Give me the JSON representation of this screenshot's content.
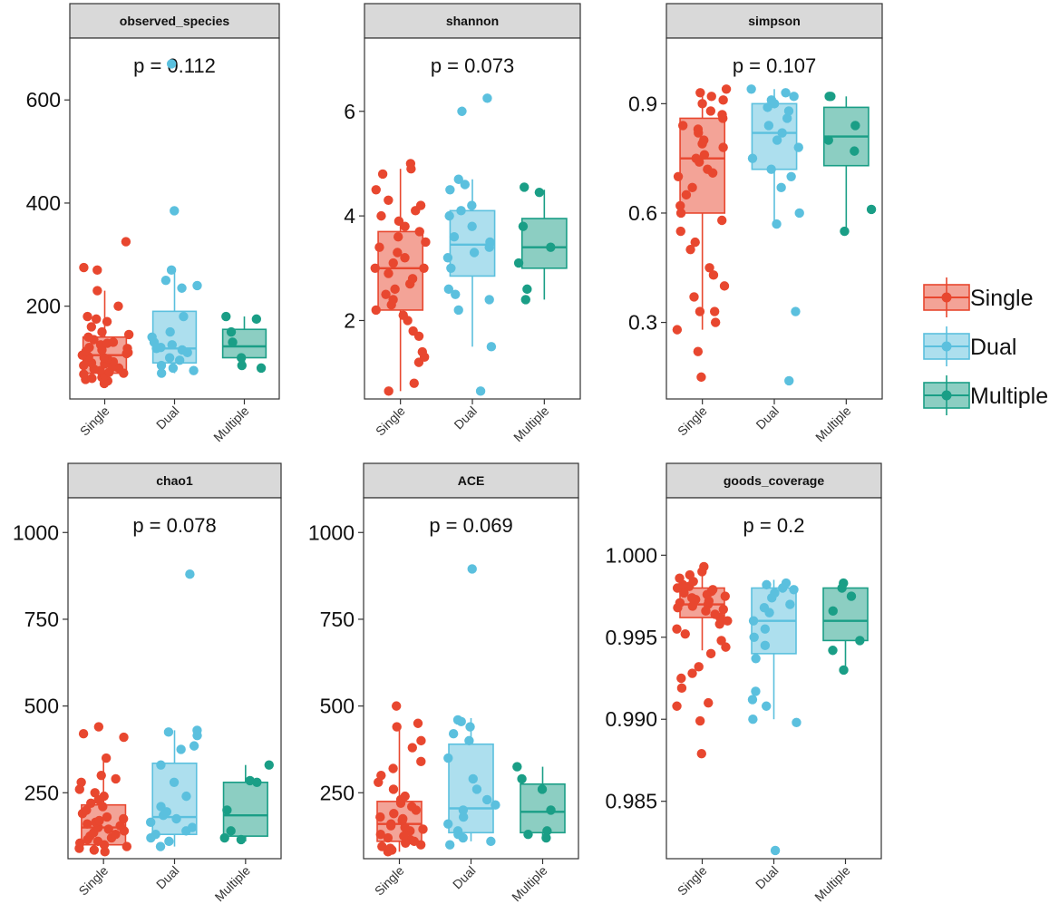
{
  "colors": {
    "single": "#E8472F",
    "dual": "#5BC0DE",
    "multiple": "#1A9E86",
    "strip_fill": "#D9D9D9",
    "panel_border": "#333333",
    "axis_text": "#111111",
    "tick_label_x": "#333333"
  },
  "legend": {
    "entries": [
      {
        "key": "single",
        "label": "Single"
      },
      {
        "key": "dual",
        "label": "Dual"
      },
      {
        "key": "multiple",
        "label": "Multiple"
      }
    ]
  },
  "chart_data": [
    {
      "type": "box",
      "title": "observed_species",
      "annotation": "p = 0.112",
      "categories": [
        "Single",
        "Dual",
        "Multiple"
      ],
      "ylim": [
        20,
        720
      ],
      "yticks": [
        200,
        400,
        600
      ],
      "ytick_labels": [
        "200",
        "400",
        "600"
      ],
      "boxes": [
        {
          "min": 50,
          "q1": 70,
          "median": 105,
          "q3": 140,
          "max": 230
        },
        {
          "min": 70,
          "q1": 90,
          "median": 118,
          "q3": 190,
          "max": 275
        },
        {
          "min": 80,
          "q1": 100,
          "median": 122,
          "q3": 155,
          "max": 180
        }
      ],
      "points": [
        [
          50,
          55,
          58,
          60,
          62,
          65,
          68,
          70,
          72,
          75,
          78,
          80,
          82,
          85,
          88,
          90,
          92,
          95,
          98,
          100,
          102,
          105,
          108,
          110,
          112,
          115,
          118,
          120,
          125,
          128,
          130,
          135,
          140,
          145,
          150,
          160,
          170,
          175,
          180,
          200,
          230,
          270,
          275,
          325
        ],
        [
          70,
          75,
          80,
          85,
          95,
          100,
          110,
          115,
          118,
          120,
          125,
          130,
          140,
          150,
          180,
          235,
          240,
          250,
          270,
          385,
          670
        ],
        [
          80,
          85,
          100,
          130,
          150,
          175,
          180
        ]
      ]
    },
    {
      "type": "box",
      "title": "shannon",
      "annotation": "p = 0.073",
      "categories": [
        "Single",
        "Dual",
        "Multiple"
      ],
      "ylim": [
        0.5,
        7.4
      ],
      "yticks": [
        2,
        4,
        6
      ],
      "ytick_labels": [
        "2",
        "4",
        "6"
      ],
      "boxes": [
        {
          "min": 0.65,
          "q1": 2.2,
          "median": 3.0,
          "q3": 3.7,
          "max": 4.9
        },
        {
          "min": 1.5,
          "q1": 2.85,
          "median": 3.45,
          "q3": 4.1,
          "max": 4.7
        },
        {
          "min": 2.4,
          "q1": 3.0,
          "median": 3.4,
          "q3": 3.95,
          "max": 4.5
        }
      ],
      "points": [
        [
          0.65,
          0.8,
          1.2,
          1.3,
          1.4,
          1.7,
          1.8,
          2.0,
          2.1,
          2.2,
          2.3,
          2.4,
          2.5,
          2.6,
          2.7,
          2.8,
          2.9,
          3.0,
          3.0,
          3.1,
          3.2,
          3.3,
          3.4,
          3.5,
          3.6,
          3.7,
          3.8,
          3.9,
          4.0,
          4.1,
          4.2,
          4.3,
          4.5,
          4.8,
          4.9,
          5.0
        ],
        [
          0.65,
          1.5,
          2.2,
          2.4,
          2.5,
          2.6,
          3.0,
          3.2,
          3.3,
          3.4,
          3.5,
          3.6,
          3.8,
          4.0,
          4.1,
          4.2,
          4.5,
          4.6,
          4.7,
          6.0,
          6.25
        ],
        [
          2.4,
          2.6,
          3.1,
          3.4,
          3.8,
          4.45,
          4.55
        ]
      ]
    },
    {
      "type": "box",
      "title": "simpson",
      "annotation": "p = 0.107",
      "categories": [
        "Single",
        "Dual",
        "Multiple"
      ],
      "ylim": [
        0.09,
        1.08
      ],
      "yticks": [
        0.3,
        0.6,
        0.9
      ],
      "ytick_labels": [
        "0.3",
        "0.6",
        "0.9"
      ],
      "boxes": [
        {
          "min": 0.28,
          "q1": 0.6,
          "median": 0.75,
          "q3": 0.86,
          "max": 0.94
        },
        {
          "min": 0.57,
          "q1": 0.72,
          "median": 0.82,
          "q3": 0.9,
          "max": 0.94
        },
        {
          "min": 0.55,
          "q1": 0.73,
          "median": 0.81,
          "q3": 0.89,
          "max": 0.92
        }
      ],
      "points": [
        [
          0.15,
          0.22,
          0.28,
          0.3,
          0.33,
          0.33,
          0.37,
          0.4,
          0.43,
          0.45,
          0.5,
          0.52,
          0.55,
          0.58,
          0.6,
          0.62,
          0.65,
          0.67,
          0.7,
          0.72,
          0.74,
          0.75,
          0.76,
          0.78,
          0.8,
          0.82,
          0.84,
          0.86,
          0.88,
          0.9,
          0.91,
          0.92,
          0.93,
          0.94,
          0.87,
          0.83,
          0.79,
          0.71
        ],
        [
          0.14,
          0.33,
          0.57,
          0.6,
          0.67,
          0.7,
          0.72,
          0.75,
          0.78,
          0.8,
          0.82,
          0.84,
          0.86,
          0.88,
          0.9,
          0.91,
          0.92,
          0.93,
          0.94,
          0.89
        ],
        [
          0.55,
          0.61,
          0.77,
          0.8,
          0.84,
          0.92,
          0.92
        ]
      ]
    },
    {
      "type": "box",
      "title": "chao1",
      "annotation": "p = 0.078",
      "categories": [
        "Single",
        "Dual",
        "Multiple"
      ],
      "ylim": [
        60,
        1100
      ],
      "yticks": [
        250,
        500,
        750,
        1000
      ],
      "ytick_labels": [
        "250",
        "500",
        "750",
        "1000"
      ],
      "boxes": [
        {
          "min": 80,
          "q1": 100,
          "median": 150,
          "q3": 215,
          "max": 345
        },
        {
          "min": 95,
          "q1": 130,
          "median": 180,
          "q3": 335,
          "max": 430
        },
        {
          "min": 110,
          "q1": 125,
          "median": 185,
          "q3": 280,
          "max": 330
        }
      ],
      "points": [
        [
          80,
          85,
          90,
          95,
          100,
          105,
          110,
          115,
          120,
          125,
          130,
          135,
          140,
          145,
          150,
          155,
          160,
          165,
          170,
          175,
          180,
          190,
          200,
          210,
          220,
          230,
          240,
          250,
          260,
          280,
          290,
          300,
          350,
          410,
          420,
          440
        ],
        [
          95,
          110,
          120,
          130,
          140,
          150,
          165,
          175,
          185,
          195,
          210,
          240,
          280,
          330,
          375,
          385,
          415,
          425,
          430,
          880
        ],
        [
          115,
          120,
          140,
          200,
          280,
          285,
          330
        ]
      ]
    },
    {
      "type": "box",
      "title": "ACE",
      "annotation": "p = 0.069",
      "categories": [
        "Single",
        "Dual",
        "Multiple"
      ],
      "ylim": [
        60,
        1100
      ],
      "yticks": [
        250,
        500,
        750,
        1000
      ],
      "ytick_labels": [
        "250",
        "500",
        "750",
        "1000"
      ],
      "boxes": [
        {
          "min": 80,
          "q1": 110,
          "median": 160,
          "q3": 225,
          "max": 440
        },
        {
          "min": 110,
          "q1": 135,
          "median": 205,
          "q3": 390,
          "max": 465
        },
        {
          "min": 120,
          "q1": 135,
          "median": 195,
          "q3": 275,
          "max": 325
        }
      ],
      "points": [
        [
          80,
          85,
          90,
          95,
          100,
          105,
          110,
          115,
          120,
          125,
          130,
          140,
          145,
          150,
          155,
          160,
          170,
          175,
          180,
          190,
          200,
          210,
          220,
          230,
          240,
          260,
          280,
          300,
          320,
          340,
          380,
          400,
          440,
          450,
          500
        ],
        [
          100,
          110,
          120,
          130,
          140,
          160,
          180,
          200,
          215,
          230,
          260,
          290,
          350,
          400,
          420,
          440,
          455,
          460,
          895
        ],
        [
          120,
          130,
          140,
          200,
          260,
          290,
          325
        ]
      ]
    },
    {
      "type": "box",
      "title": "goods_coverage",
      "annotation": "p = 0.2",
      "categories": [
        "Single",
        "Dual",
        "Multiple"
      ],
      "ylim": [
        0.9815,
        1.0035
      ],
      "yticks": [
        0.985,
        0.99,
        0.995,
        1.0
      ],
      "ytick_labels": [
        "0.985",
        "0.990",
        "0.995",
        "1.000"
      ],
      "boxes": [
        {
          "min": 0.9942,
          "q1": 0.9962,
          "median": 0.997,
          "q3": 0.998,
          "max": 0.9992
        },
        {
          "min": 0.99,
          "q1": 0.994,
          "median": 0.996,
          "q3": 0.998,
          "max": 0.9985
        },
        {
          "min": 0.993,
          "q1": 0.9948,
          "median": 0.996,
          "q3": 0.998,
          "max": 0.9983
        }
      ],
      "points": [
        [
          0.9879,
          0.9899,
          0.9908,
          0.991,
          0.9919,
          0.9925,
          0.9928,
          0.9932,
          0.994,
          0.9944,
          0.9948,
          0.9952,
          0.9955,
          0.9958,
          0.996,
          0.9962,
          0.9964,
          0.9966,
          0.9967,
          0.9968,
          0.9969,
          0.997,
          0.9971,
          0.9972,
          0.9973,
          0.9974,
          0.9975,
          0.9976,
          0.9977,
          0.9978,
          0.9979,
          0.998,
          0.9981,
          0.9982,
          0.9984,
          0.9986,
          0.9988,
          0.999,
          0.9993
        ],
        [
          0.982,
          0.9898,
          0.99,
          0.9908,
          0.9912,
          0.9917,
          0.9937,
          0.9945,
          0.995,
          0.9955,
          0.996,
          0.9965,
          0.9968,
          0.997,
          0.9974,
          0.9977,
          0.9979,
          0.998,
          0.9982,
          0.9983
        ],
        [
          0.993,
          0.9942,
          0.9948,
          0.9966,
          0.9975,
          0.998,
          0.9983
        ]
      ]
    }
  ]
}
